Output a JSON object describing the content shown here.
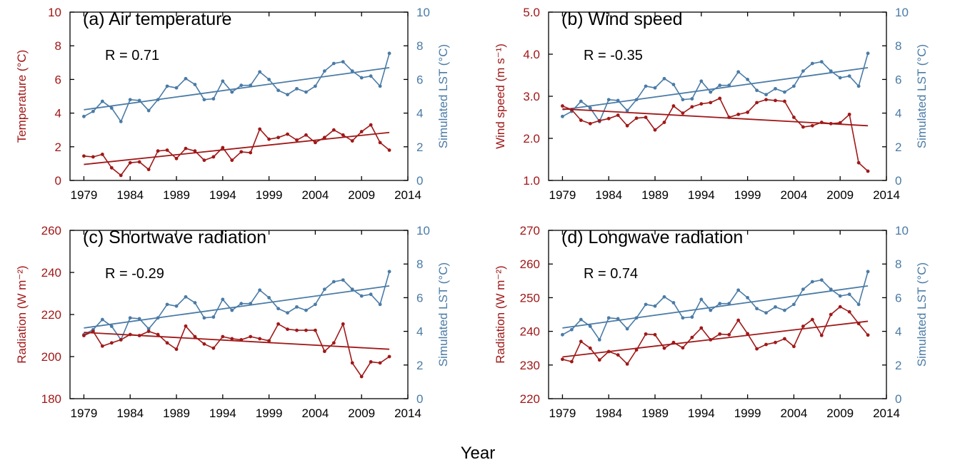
{
  "figure": {
    "xlabel": "Year"
  },
  "colors": {
    "left": "#a01818",
    "right": "#4a7ba6",
    "axis": "#000000"
  },
  "chart_data": [
    {
      "type": "line",
      "title": "(a) Air temperature",
      "annotation": "R = 0.71",
      "xlim": [
        1977.5,
        2014
      ],
      "xticks": [
        1979,
        1984,
        1989,
        1994,
        1999,
        2004,
        2009,
        2014
      ],
      "ylabel_left": "Temperature (°C)",
      "ylim_left": [
        0,
        10
      ],
      "yticks_left": [
        0,
        2,
        4,
        6,
        8,
        10
      ],
      "ytick_labels_left": [
        "0",
        "2",
        "4",
        "6",
        "8",
        "10"
      ],
      "ylabel_right": "Simulated LST (°C)",
      "ylim_right": [
        0,
        10
      ],
      "yticks_right": [
        0,
        2,
        4,
        6,
        8,
        10
      ],
      "ytick_labels_right": [
        "0",
        "2",
        "4",
        "6",
        "8",
        "10"
      ],
      "x": [
        1979,
        1980,
        1981,
        1982,
        1983,
        1984,
        1985,
        1986,
        1987,
        1988,
        1989,
        1990,
        1991,
        1992,
        1993,
        1994,
        1995,
        1996,
        1997,
        1998,
        1999,
        2000,
        2001,
        2002,
        2003,
        2004,
        2005,
        2006,
        2007,
        2008,
        2009,
        2010,
        2011,
        2012
      ],
      "series": [
        {
          "axis": "left",
          "values": [
            1.45,
            1.4,
            1.55,
            0.75,
            0.3,
            1.05,
            1.1,
            0.65,
            1.75,
            1.8,
            1.3,
            1.9,
            1.75,
            1.2,
            1.4,
            1.95,
            1.2,
            1.7,
            1.65,
            3.05,
            2.45,
            2.55,
            2.75,
            2.4,
            2.7,
            2.25,
            2.55,
            3.0,
            2.7,
            2.35,
            2.9,
            3.3,
            2.25,
            1.8
          ],
          "trend": [
            0.95,
            2.85
          ]
        },
        {
          "axis": "right",
          "values": [
            3.8,
            4.1,
            4.7,
            4.3,
            3.5,
            4.8,
            4.75,
            4.15,
            4.8,
            5.6,
            5.5,
            6.05,
            5.7,
            4.8,
            4.85,
            5.9,
            5.25,
            5.65,
            5.65,
            6.45,
            6.0,
            5.35,
            5.1,
            5.45,
            5.25,
            5.6,
            6.5,
            6.95,
            7.05,
            6.5,
            6.1,
            6.2,
            5.6,
            7.55
          ],
          "trend": [
            4.2,
            6.7
          ]
        }
      ]
    },
    {
      "type": "line",
      "title": "(b) Wind speed",
      "annotation": "R = -0.35",
      "xlim": [
        1977.5,
        2014
      ],
      "xticks": [
        1979,
        1984,
        1989,
        1994,
        1999,
        2004,
        2009,
        2014
      ],
      "ylabel_left": "Wind speed (m s⁻¹)",
      "ylim_left": [
        1.0,
        5.0
      ],
      "yticks_left": [
        1,
        2,
        3,
        4,
        5
      ],
      "ytick_labels_left": [
        "1.0",
        "2.0",
        "3.0",
        "4.0",
        "5.0"
      ],
      "ylabel_right": "Simulated LST (°C)",
      "ylim_right": [
        0,
        10
      ],
      "yticks_right": [
        0,
        2,
        4,
        6,
        8,
        10
      ],
      "ytick_labels_right": [
        "0",
        "2",
        "4",
        "6",
        "8",
        "10"
      ],
      "x": [
        1979,
        1980,
        1981,
        1982,
        1983,
        1984,
        1985,
        1986,
        1987,
        1988,
        1989,
        1990,
        1991,
        1992,
        1993,
        1994,
        1995,
        1996,
        1997,
        1998,
        1999,
        2000,
        2001,
        2002,
        2003,
        2004,
        2005,
        2006,
        2007,
        2008,
        2009,
        2010,
        2011,
        2012
      ],
      "series": [
        {
          "axis": "left",
          "values": [
            2.77,
            2.68,
            2.43,
            2.35,
            2.42,
            2.47,
            2.55,
            2.3,
            2.48,
            2.5,
            2.2,
            2.38,
            2.77,
            2.6,
            2.75,
            2.82,
            2.85,
            2.95,
            2.5,
            2.57,
            2.62,
            2.85,
            2.92,
            2.9,
            2.88,
            2.5,
            2.27,
            2.3,
            2.38,
            2.35,
            2.37,
            2.57,
            1.42,
            1.22
          ],
          "trend": [
            2.7,
            2.3
          ]
        },
        {
          "axis": "right",
          "values": [
            3.8,
            4.1,
            4.7,
            4.3,
            3.5,
            4.8,
            4.75,
            4.15,
            4.8,
            5.6,
            5.5,
            6.05,
            5.7,
            4.8,
            4.85,
            5.9,
            5.25,
            5.65,
            5.65,
            6.45,
            6.0,
            5.35,
            5.1,
            5.45,
            5.25,
            5.6,
            6.5,
            6.95,
            7.05,
            6.5,
            6.1,
            6.2,
            5.6,
            7.55
          ],
          "trend": [
            4.2,
            6.7
          ]
        }
      ]
    },
    {
      "type": "line",
      "title": "(c) Shortwave radiation",
      "annotation": "R = -0.29",
      "xlim": [
        1977.5,
        2014
      ],
      "xticks": [
        1979,
        1984,
        1989,
        1994,
        1999,
        2004,
        2009,
        2014
      ],
      "ylabel_left": "Radiation (W m⁻²)",
      "ylim_left": [
        180,
        260
      ],
      "yticks_left": [
        180,
        200,
        220,
        240,
        260
      ],
      "ytick_labels_left": [
        "180",
        "200",
        "220",
        "240",
        "260"
      ],
      "ylabel_right": "Simulated LST (°C)",
      "ylim_right": [
        0,
        10
      ],
      "yticks_right": [
        0,
        2,
        4,
        6,
        8,
        10
      ],
      "ytick_labels_right": [
        "0",
        "2",
        "4",
        "6",
        "8",
        "10"
      ],
      "x": [
        1979,
        1980,
        1981,
        1982,
        1983,
        1984,
        1985,
        1986,
        1987,
        1988,
        1989,
        1990,
        1991,
        1992,
        1993,
        1994,
        1995,
        1996,
        1997,
        1998,
        1999,
        2000,
        2001,
        2002,
        2003,
        2004,
        2005,
        2006,
        2007,
        2008,
        2009,
        2010,
        2011,
        2012
      ],
      "series": [
        {
          "axis": "left",
          "values": [
            210,
            212,
            205,
            206.5,
            208,
            210.5,
            210,
            212,
            210.5,
            206.5,
            203.5,
            214.5,
            209.5,
            206,
            204,
            209.5,
            208.5,
            208,
            209.5,
            208.5,
            207.5,
            215.5,
            213,
            212.5,
            212.5,
            212.5,
            202.5,
            206.5,
            215.5,
            197,
            190.5,
            197.5,
            197,
            200
          ],
          "trend": [
            211.5,
            203.5
          ]
        },
        {
          "axis": "right",
          "values": [
            3.8,
            4.1,
            4.7,
            4.3,
            3.5,
            4.8,
            4.75,
            4.15,
            4.8,
            5.6,
            5.5,
            6.05,
            5.7,
            4.8,
            4.85,
            5.9,
            5.25,
            5.65,
            5.65,
            6.45,
            6.0,
            5.35,
            5.1,
            5.45,
            5.25,
            5.6,
            6.5,
            6.95,
            7.05,
            6.5,
            6.1,
            6.2,
            5.6,
            7.55
          ],
          "trend": [
            4.2,
            6.7
          ]
        }
      ]
    },
    {
      "type": "line",
      "title": "(d) Longwave radiation",
      "annotation": "R = 0.74",
      "xlim": [
        1977.5,
        2014
      ],
      "xticks": [
        1979,
        1984,
        1989,
        1994,
        1999,
        2004,
        2009,
        2014
      ],
      "ylabel_left": "Radiation (W m⁻²)",
      "ylim_left": [
        220,
        270
      ],
      "yticks_left": [
        220,
        230,
        240,
        250,
        260,
        270
      ],
      "ytick_labels_left": [
        "220",
        "230",
        "240",
        "250",
        "260",
        "270"
      ],
      "ylabel_right": "Simulated LST (°C)",
      "ylim_right": [
        0,
        10
      ],
      "yticks_right": [
        0,
        2,
        4,
        6,
        8,
        10
      ],
      "ytick_labels_right": [
        "0",
        "2",
        "4",
        "6",
        "8",
        "10"
      ],
      "x": [
        1979,
        1980,
        1981,
        1982,
        1983,
        1984,
        1985,
        1986,
        1987,
        1988,
        1989,
        1990,
        1991,
        1992,
        1993,
        1994,
        1995,
        1996,
        1997,
        1998,
        1999,
        2000,
        2001,
        2002,
        2003,
        2004,
        2005,
        2006,
        2007,
        2008,
        2009,
        2010,
        2011,
        2012
      ],
      "series": [
        {
          "axis": "left",
          "values": [
            231.7,
            231,
            237,
            235,
            231.5,
            234,
            233,
            230.3,
            234.5,
            239.2,
            239,
            235,
            236.7,
            235.1,
            238.2,
            241,
            237.5,
            239.2,
            239,
            243.3,
            239.3,
            234.8,
            236.1,
            236.7,
            237.8,
            235.5,
            241.5,
            243.5,
            238.8,
            245,
            247.3,
            245.8,
            242.3,
            238.9
          ],
          "trend": [
            232.4,
            243.0
          ]
        },
        {
          "axis": "right",
          "values": [
            3.8,
            4.1,
            4.7,
            4.3,
            3.5,
            4.8,
            4.75,
            4.15,
            4.8,
            5.6,
            5.5,
            6.05,
            5.7,
            4.8,
            4.85,
            5.9,
            5.25,
            5.65,
            5.65,
            6.45,
            6.0,
            5.35,
            5.1,
            5.45,
            5.25,
            5.6,
            6.5,
            6.95,
            7.05,
            6.5,
            6.1,
            6.2,
            5.6,
            7.55
          ],
          "trend": [
            4.2,
            6.7
          ]
        }
      ]
    }
  ]
}
